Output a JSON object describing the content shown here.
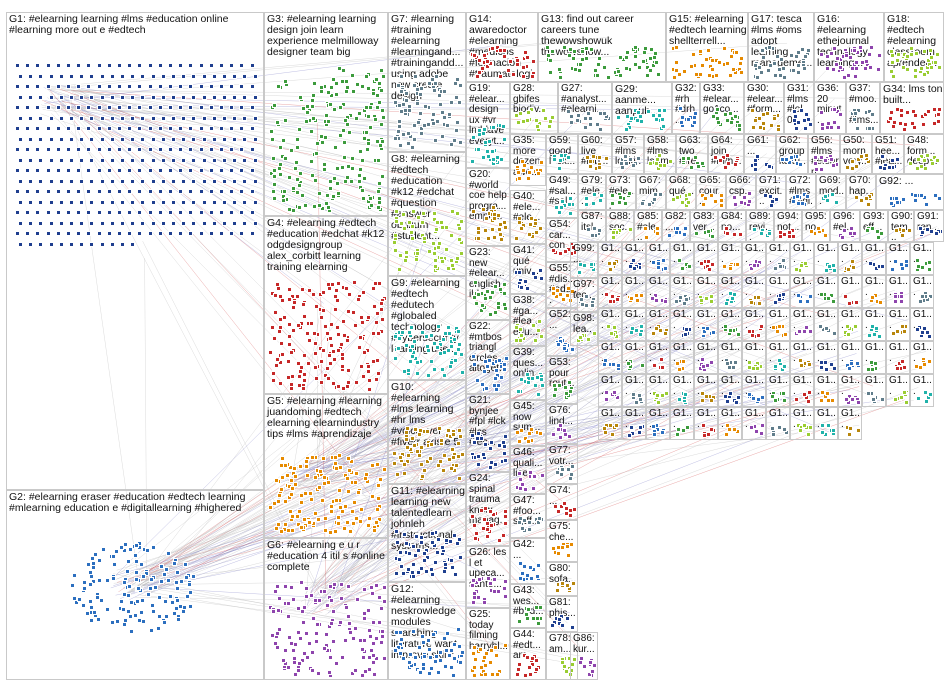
{
  "graph": {
    "node_colors": [
      "#1f3f8f",
      "#2c6fbf",
      "#3c9b3c",
      "#c62828",
      "#e68a00",
      "#8e44ad",
      "#607d8b",
      "#9acd32",
      "#20b2aa",
      "#b8860b"
    ],
    "edge_colors": [
      "#b0b0b0",
      "#d04040",
      "#7070c0",
      "#50a050"
    ],
    "groups": [
      {
        "id": "G1",
        "label": "G1: #elearning learning #lms #education online #learning more out e #edtech"
      },
      {
        "id": "G2",
        "label": "G2: #elearning eraser #education #edtech learning #mlearning education e #digitallearning #highered"
      },
      {
        "id": "G3",
        "label": "G3: #elearning learning design join learn experience melmilloway designer team big"
      },
      {
        "id": "G4",
        "label": "G4: #elearning #edtech #education #edchat #k12 odgdesigngroup alex_corbitt learning training elearning"
      },
      {
        "id": "G5",
        "label": "G5: #elearning #learning juandoming #edtech elearning elearnindustry tips #lms #aprendizaje"
      },
      {
        "id": "G6",
        "label": "G6: #elearning e u r #education 4 itil s #online complete"
      },
      {
        "id": "G7",
        "label": "G7: #learning #training #elearning #learningand... #trainingandd... using adobe new create design"
      },
      {
        "id": "G8",
        "label": "G8: #elearning #edtech #education #k12 #edchat #question #answer obrizum #student..."
      },
      {
        "id": "G9",
        "label": "G9: #elearning #edtech #edutech #globaled technology #cybersecurity learning use..."
      },
      {
        "id": "G10",
        "label": "G10: #elearning #lms learning #hr lms #voiceover #fiverr axis e 5"
      },
      {
        "id": "G11",
        "label": "G11: #elearning learning new talentedlearn johnleh #instructional... systems..."
      },
      {
        "id": "G12",
        "label": "G12: #elearning neskrowledge modules searching literature want improve skills..."
      },
      {
        "id": "G13",
        "label": "G13: find out career careers tune thewowshowuk thewowshow..."
      },
      {
        "id": "G14",
        "label": "G14: awaredoctor #elearning #medicos #formación #traumatologia..."
      },
      {
        "id": "G15",
        "label": "G15: #elearning #edtech learning shellterrell..."
      },
      {
        "id": "G16",
        "label": "G16: #elearning ethejournal technology learning..."
      },
      {
        "id": "G17",
        "label": "G17: tesca #lms #oms adopt learning manageme..."
      },
      {
        "id": "G18",
        "label": "G18: #edtech #elearning classroom aprender..."
      },
      {
        "id": "G19",
        "label": "G19: #elear... design ux #vr lnddave everyt..."
      },
      {
        "id": "G20",
        "label": "G20: #world coe help progra... empo..."
      },
      {
        "id": "G21",
        "label": "G21: bynjee #fpl #lck #lcs #lec..."
      },
      {
        "id": "G22",
        "label": "G22: #mtbos triangl circles altoget..."
      },
      {
        "id": "G23",
        "label": "G23: new #elear... english ild..."
      },
      {
        "id": "G24",
        "label": "G24: spinal trauma know manag..."
      },
      {
        "id": "G25",
        "label": "G25: today filming harrybl..."
      },
      {
        "id": "G26",
        "label": "G26: les l et upeca... santé..."
      },
      {
        "id": "G27",
        "label": "G27: #analyst... #elearni..."
      },
      {
        "id": "G28",
        "label": "G28: gbifes biodiv..."
      },
      {
        "id": "G29",
        "label": "G29: aanme... aanpub..."
      },
      {
        "id": "G30",
        "label": "G30: #elear... #form..."
      },
      {
        "id": "G31",
        "label": "G31: #lms #lol 0..."
      },
      {
        "id": "G32",
        "label": "G32: #rh #drh..."
      },
      {
        "id": "G33",
        "label": "G33: #elear... go1co..."
      },
      {
        "id": "G34",
        "label": "G34: lms ton built..."
      },
      {
        "id": "G35",
        "label": "G35: more dozen awe..."
      },
      {
        "id": "G36",
        "label": "G36: 20 minut..."
      },
      {
        "id": "G37",
        "label": "G37: #moo... #lms..."
      },
      {
        "id": "G38",
        "label": "G38: #ga... #lea... edu..."
      },
      {
        "id": "G39",
        "label": "G39: ques... onlin..."
      },
      {
        "id": "G40",
        "label": "G40: #ele... #ele..."
      },
      {
        "id": "G41",
        "label": "G41: qué univ..."
      },
      {
        "id": "G42",
        "label": "G42: ..."
      },
      {
        "id": "G43",
        "label": "G43: wes... #b3d..."
      },
      {
        "id": "G44",
        "label": "G44: #edt... am..."
      },
      {
        "id": "G45",
        "label": "G45: now sum..."
      },
      {
        "id": "G46",
        "label": "G46: quali... licen..."
      },
      {
        "id": "G47",
        "label": "G47: #foo... staff..."
      },
      {
        "id": "G48",
        "label": "G48: form... deep..."
      },
      {
        "id": "G49",
        "label": "G49: #sal... #sel..."
      },
      {
        "id": "G50",
        "label": "G50: morn very..."
      },
      {
        "id": "G51",
        "label": "G51: hee... #lea..."
      },
      {
        "id": "G52",
        "label": "G52: ..."
      },
      {
        "id": "G53",
        "label": "G53: pour rout..."
      },
      {
        "id": "G54",
        "label": "G54: car... con..."
      },
      {
        "id": "G55",
        "label": "G55: #dis... #edu..."
      },
      {
        "id": "G56",
        "label": "G56: #lms #elearn..."
      },
      {
        "id": "G57",
        "label": "G57: #lms looki..."
      },
      {
        "id": "G58",
        "label": "G58: #lms labm..."
      },
      {
        "id": "G59",
        "label": "G59: good luck..."
      },
      {
        "id": "G60",
        "label": "G60: live #lab..."
      },
      {
        "id": "G61",
        "label": "G61: ..."
      },
      {
        "id": "G62",
        "label": "G62: group kaltu..."
      },
      {
        "id": "G63",
        "label": "G63: two #fre..."
      },
      {
        "id": "G64",
        "label": "G64: join #mth..."
      },
      {
        "id": "G65",
        "label": "G65: cour..."
      },
      {
        "id": "G66",
        "label": "G66: csp..."
      },
      {
        "id": "G67",
        "label": "G67: mim..."
      },
      {
        "id": "G68",
        "label": "G68: qué..."
      },
      {
        "id": "G69",
        "label": "G69: mod..."
      },
      {
        "id": "G70",
        "label": "G70: hap..."
      },
      {
        "id": "G71",
        "label": "G71: excit..."
      },
      {
        "id": "G72",
        "label": "G72: #lms #digi..."
      },
      {
        "id": "G73",
        "label": "G73: #ele... lear..."
      },
      {
        "id": "G74",
        "label": "G74: ..."
      },
      {
        "id": "G75",
        "label": "G75: che..."
      },
      {
        "id": "G76",
        "label": "G76: lind..."
      },
      {
        "id": "G77",
        "label": "G77: votr..."
      },
      {
        "id": "G78",
        "label": "G78: am..."
      },
      {
        "id": "G79",
        "label": "G79: #ele..."
      },
      {
        "id": "G80",
        "label": "G80: sofa..."
      },
      {
        "id": "G81",
        "label": "G81: phis..."
      },
      {
        "id": "G82",
        "label": "G82: ..."
      },
      {
        "id": "G83",
        "label": "G83: ver..."
      },
      {
        "id": "G84",
        "label": "G84: no..."
      },
      {
        "id": "G85",
        "label": "G85: #ele..."
      },
      {
        "id": "G86",
        "label": "G86: kur..."
      },
      {
        "id": "G87",
        "label": "G87: itsl..."
      },
      {
        "id": "G88",
        "label": "G88: soc..."
      },
      {
        "id": "G89",
        "label": "G89: revi..."
      },
      {
        "id": "G90",
        "label": "G90: tem..."
      },
      {
        "id": "G91",
        "label": "G91: ren..."
      },
      {
        "id": "G92",
        "label": "G92: ..."
      },
      {
        "id": "G93",
        "label": "G93: eff..."
      },
      {
        "id": "G94",
        "label": "G94: not..."
      },
      {
        "id": "G95",
        "label": "G95: no..."
      },
      {
        "id": "G96",
        "label": "G96: #el..."
      },
      {
        "id": "G97",
        "label": "G97: tec..."
      },
      {
        "id": "G98",
        "label": "G98: lea..."
      },
      {
        "id": "G99",
        "label": "G99: ..."
      },
      {
        "id": "G100",
        "label": "G1..."
      },
      {
        "id": "G101",
        "label": "G1..."
      },
      {
        "id": "G102",
        "label": "G1..."
      },
      {
        "id": "G103",
        "label": "G1..."
      },
      {
        "id": "G104",
        "label": "G1..."
      },
      {
        "id": "G105",
        "label": "G1..."
      },
      {
        "id": "G106",
        "label": "G1..."
      },
      {
        "id": "G107",
        "label": "G1..."
      },
      {
        "id": "G108",
        "label": "G1..."
      },
      {
        "id": "G109",
        "label": "G1..."
      },
      {
        "id": "G110",
        "label": "G1..."
      },
      {
        "id": "G111",
        "label": "G1..."
      },
      {
        "id": "G112",
        "label": "G1..."
      },
      {
        "id": "G113",
        "label": "G1..."
      },
      {
        "id": "G114",
        "label": "G1..."
      },
      {
        "id": "G115",
        "label": "G1..."
      },
      {
        "id": "G116",
        "label": "G1..."
      },
      {
        "id": "G117",
        "label": "G1..."
      },
      {
        "id": "G118",
        "label": "G1..."
      },
      {
        "id": "G119",
        "label": "G1..."
      },
      {
        "id": "G120",
        "label": "G1..."
      },
      {
        "id": "G121",
        "label": "G1..."
      },
      {
        "id": "G122",
        "label": "G1..."
      },
      {
        "id": "G123",
        "label": "G1..."
      },
      {
        "id": "G124",
        "label": "G1..."
      },
      {
        "id": "G125",
        "label": "G1..."
      },
      {
        "id": "G126",
        "label": "G1..."
      },
      {
        "id": "G127",
        "label": "G1..."
      },
      {
        "id": "G128",
        "label": "G1..."
      },
      {
        "id": "G129",
        "label": "G1..."
      },
      {
        "id": "G130",
        "label": "G1..."
      },
      {
        "id": "G131",
        "label": "G1..."
      },
      {
        "id": "G132",
        "label": "G1..."
      },
      {
        "id": "G133",
        "label": "G1..."
      },
      {
        "id": "G134",
        "label": "G1..."
      },
      {
        "id": "G135",
        "label": "G1..."
      },
      {
        "id": "G136",
        "label": "G1..."
      },
      {
        "id": "G137",
        "label": "G1..."
      },
      {
        "id": "G138",
        "label": "G1..."
      },
      {
        "id": "G139",
        "label": "G1..."
      },
      {
        "id": "G140",
        "label": "G1..."
      },
      {
        "id": "G141",
        "label": "G1..."
      },
      {
        "id": "G142",
        "label": "G1..."
      },
      {
        "id": "G143",
        "label": "G1..."
      },
      {
        "id": "G144",
        "label": "G1..."
      },
      {
        "id": "G145",
        "label": "G1..."
      },
      {
        "id": "G146",
        "label": "G1..."
      },
      {
        "id": "G147",
        "label": "G1..."
      },
      {
        "id": "G148",
        "label": "G1..."
      },
      {
        "id": "G149",
        "label": "G1..."
      },
      {
        "id": "G150",
        "label": "G1..."
      },
      {
        "id": "G151",
        "label": "G1..."
      },
      {
        "id": "G152",
        "label": "G1..."
      },
      {
        "id": "G153",
        "label": "G1..."
      },
      {
        "id": "G154",
        "label": "G1..."
      },
      {
        "id": "G155",
        "label": "G1..."
      },
      {
        "id": "G156",
        "label": "G1..."
      },
      {
        "id": "G157",
        "label": "G1..."
      },
      {
        "id": "G158",
        "label": "G1..."
      },
      {
        "id": "G159",
        "label": "G1..."
      },
      {
        "id": "G160",
        "label": "G1..."
      },
      {
        "id": "G161",
        "label": "G1..."
      },
      {
        "id": "G162",
        "label": "G1..."
      },
      {
        "id": "G163",
        "label": "G1..."
      },
      {
        "id": "G164",
        "label": "G1..."
      },
      {
        "id": "G165",
        "label": "G1..."
      },
      {
        "id": "G166",
        "label": "G1..."
      },
      {
        "id": "G167",
        "label": "G1..."
      },
      {
        "id": "G168",
        "label": "G1..."
      },
      {
        "id": "G169",
        "label": "G1..."
      },
      {
        "id": "G170",
        "label": "G1..."
      },
      {
        "id": "G171",
        "label": "G1..."
      },
      {
        "id": "G172",
        "label": "G1..."
      },
      {
        "id": "G173",
        "label": "G1..."
      },
      {
        "id": "G174",
        "label": "G1..."
      },
      {
        "id": "G175",
        "label": "G1..."
      },
      {
        "id": "G176",
        "label": "G1..."
      },
      {
        "id": "G177",
        "label": "G1..."
      },
      {
        "id": "G178",
        "label": "G1..."
      },
      {
        "id": "G179",
        "label": "G1..."
      },
      {
        "id": "G180",
        "label": "G1..."
      }
    ]
  }
}
